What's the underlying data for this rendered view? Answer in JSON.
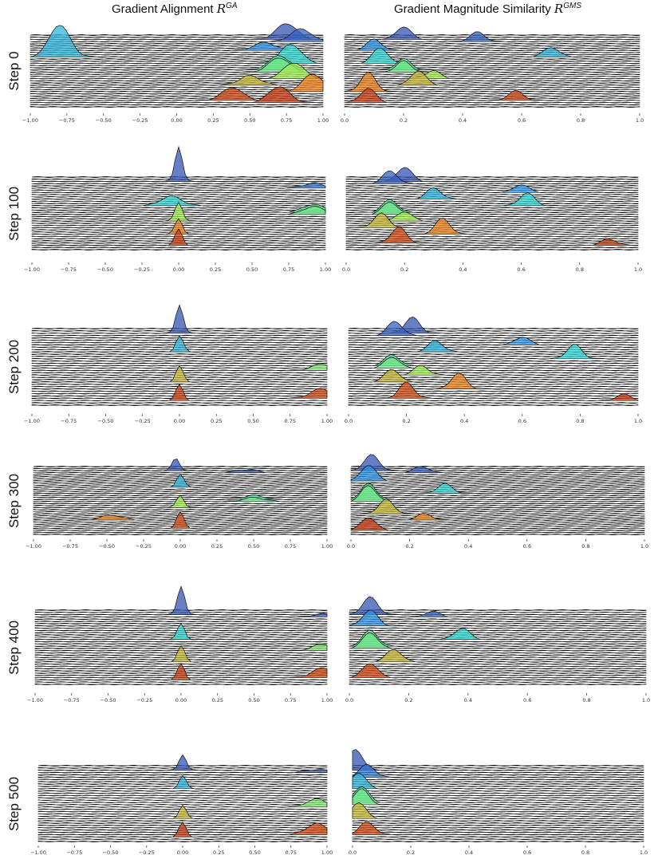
{
  "titles": {
    "ga_text": "Gradient Alignment ",
    "ga_sym": "R",
    "ga_sup": "GA",
    "gms_text": "Gradient Magnitude Similarity ",
    "gms_sym": "R",
    "gms_sup": "GMS"
  },
  "colors": {
    "top": "#3a3a9a",
    "mid_blue": "#2f8fe6",
    "cyan": "#30d9d0",
    "green": "#9ef052",
    "orange": "#f07a1a",
    "bottom": "#b3200e",
    "baseline": "#111111"
  },
  "chart_data": [
    {
      "type": "ridgeline",
      "panel": "GA",
      "row_label": "Step 0",
      "xlim": [
        -1.0,
        1.0
      ],
      "xticks": [
        "−1.00",
        "−0.75",
        "−0.50",
        "−0.25",
        "0.00",
        "0.25",
        "0.50",
        "0.75",
        "1.00"
      ],
      "peaks": [
        {
          "layer": 0.05,
          "center": 0.75,
          "height": 1.0
        },
        {
          "layer": 0.1,
          "center": 0.85,
          "height": 0.8
        },
        {
          "layer": 0.2,
          "center": 0.6,
          "height": 0.5
        },
        {
          "layer": 0.3,
          "center": -0.8,
          "height": 2.0
        },
        {
          "layer": 0.4,
          "center": 0.78,
          "height": 1.2
        },
        {
          "layer": 0.5,
          "center": 0.7,
          "height": 0.9
        },
        {
          "layer": 0.6,
          "center": 0.8,
          "height": 1.0
        },
        {
          "layer": 0.7,
          "center": 0.5,
          "height": 0.6
        },
        {
          "layer": 0.8,
          "center": 0.93,
          "height": 1.1
        },
        {
          "layer": 0.9,
          "center": 0.38,
          "height": 0.8
        },
        {
          "layer": 0.95,
          "center": 0.7,
          "height": 1.0
        }
      ]
    },
    {
      "type": "ridgeline",
      "panel": "GMS",
      "row_label": "Step 0",
      "xlim": [
        0.0,
        1.0
      ],
      "xticks": [
        "0.0",
        "0.2",
        "0.4",
        "0.6",
        "0.8",
        "1.0"
      ],
      "peaks": [
        {
          "layer": 0.05,
          "center": 0.2,
          "height": 0.8
        },
        {
          "layer": 0.1,
          "center": 0.45,
          "height": 0.6
        },
        {
          "layer": 0.2,
          "center": 0.1,
          "height": 0.7
        },
        {
          "layer": 0.3,
          "center": 0.7,
          "height": 0.6
        },
        {
          "layer": 0.4,
          "center": 0.12,
          "height": 1.0
        },
        {
          "layer": 0.5,
          "center": 0.2,
          "height": 0.7
        },
        {
          "layer": 0.6,
          "center": 0.3,
          "height": 0.5
        },
        {
          "layer": 0.7,
          "center": 0.25,
          "height": 0.9
        },
        {
          "layer": 0.8,
          "center": 0.08,
          "height": 1.2
        },
        {
          "layer": 0.9,
          "center": 0.58,
          "height": 0.6
        },
        {
          "layer": 0.95,
          "center": 0.08,
          "height": 0.9
        }
      ]
    },
    {
      "type": "ridgeline",
      "panel": "GA",
      "row_label": "Step 100",
      "xlim": [
        -1.0,
        1.0
      ],
      "xticks": [
        "−1.00",
        "−0.75",
        "−0.50",
        "−0.25",
        "0.00",
        "0.25",
        "0.50",
        "0.75",
        "1.00"
      ],
      "peaks": [
        {
          "layer": 0.05,
          "center": 0.0,
          "height": 2.2
        },
        {
          "layer": 0.15,
          "center": 0.92,
          "height": 0.3
        },
        {
          "layer": 0.4,
          "center": -0.05,
          "height": 0.6
        },
        {
          "layer": 0.5,
          "center": 0.92,
          "height": 0.5
        },
        {
          "layer": 0.6,
          "center": 0.0,
          "height": 1.2
        },
        {
          "layer": 0.8,
          "center": 0.0,
          "height": 1.0
        },
        {
          "layer": 0.95,
          "center": 0.0,
          "height": 1.0
        }
      ]
    },
    {
      "type": "ridgeline",
      "panel": "GMS",
      "row_label": "Step 100",
      "xlim": [
        0.0,
        1.0
      ],
      "xticks": [
        "0.0",
        "0.2",
        "0.4",
        "0.6",
        "0.8",
        "1.0"
      ],
      "peaks": [
        {
          "layer": 0.05,
          "center": 0.2,
          "height": 0.9
        },
        {
          "layer": 0.1,
          "center": 0.15,
          "height": 0.8
        },
        {
          "layer": 0.2,
          "center": 0.6,
          "height": 0.5
        },
        {
          "layer": 0.3,
          "center": 0.3,
          "height": 0.7
        },
        {
          "layer": 0.4,
          "center": 0.62,
          "height": 0.8
        },
        {
          "layer": 0.5,
          "center": 0.15,
          "height": 0.8
        },
        {
          "layer": 0.6,
          "center": 0.2,
          "height": 0.6
        },
        {
          "layer": 0.7,
          "center": 0.12,
          "height": 0.9
        },
        {
          "layer": 0.8,
          "center": 0.33,
          "height": 1.0
        },
        {
          "layer": 0.9,
          "center": 0.18,
          "height": 1.0
        },
        {
          "layer": 0.95,
          "center": 0.9,
          "height": 0.4
        }
      ]
    },
    {
      "type": "ridgeline",
      "panel": "GA",
      "row_label": "Step 200",
      "xlim": [
        -1.0,
        1.0
      ],
      "xticks": [
        "−1.00",
        "−0.75",
        "−0.50",
        "−0.25",
        "0.00",
        "0.25",
        "0.50",
        "0.75",
        "1.00"
      ],
      "peaks": [
        {
          "layer": 0.05,
          "center": 0.0,
          "height": 1.8
        },
        {
          "layer": 0.3,
          "center": 0.0,
          "height": 1.0
        },
        {
          "layer": 0.55,
          "center": 0.97,
          "height": 0.4
        },
        {
          "layer": 0.7,
          "center": 0.0,
          "height": 1.0
        },
        {
          "layer": 0.9,
          "center": 0.96,
          "height": 0.6
        },
        {
          "layer": 0.95,
          "center": 0.0,
          "height": 1.0
        }
      ]
    },
    {
      "type": "ridgeline",
      "panel": "GMS",
      "row_label": "Step 200",
      "xlim": [
        0.0,
        1.0
      ],
      "xticks": [
        "0.0",
        "0.2",
        "0.4",
        "0.6",
        "0.8",
        "1.0"
      ],
      "peaks": [
        {
          "layer": 0.05,
          "center": 0.22,
          "height": 1.0
        },
        {
          "layer": 0.1,
          "center": 0.16,
          "height": 0.9
        },
        {
          "layer": 0.2,
          "center": 0.6,
          "height": 0.5
        },
        {
          "layer": 0.3,
          "center": 0.3,
          "height": 0.7
        },
        {
          "layer": 0.4,
          "center": 0.78,
          "height": 0.9
        },
        {
          "layer": 0.5,
          "center": 0.15,
          "height": 0.7
        },
        {
          "layer": 0.6,
          "center": 0.25,
          "height": 0.6
        },
        {
          "layer": 0.7,
          "center": 0.15,
          "height": 0.8
        },
        {
          "layer": 0.8,
          "center": 0.38,
          "height": 1.0
        },
        {
          "layer": 0.9,
          "center": 0.2,
          "height": 1.0
        },
        {
          "layer": 0.95,
          "center": 0.95,
          "height": 0.4
        }
      ]
    },
    {
      "type": "ridgeline",
      "panel": "GA",
      "row_label": "Step 300",
      "xlim": [
        -1.0,
        1.0
      ],
      "xticks": [
        "−1.00",
        "−0.75",
        "−0.50",
        "−0.25",
        "0.00",
        "0.25",
        "0.50",
        "0.75",
        "1.00"
      ],
      "peaks": [
        {
          "layer": 0.05,
          "center": -0.03,
          "height": 0.8
        },
        {
          "layer": 0.1,
          "center": 0.45,
          "height": 0.2
        },
        {
          "layer": 0.3,
          "center": 0.0,
          "height": 0.8
        },
        {
          "layer": 0.5,
          "center": 0.5,
          "height": 0.25
        },
        {
          "layer": 0.6,
          "center": 0.0,
          "height": 0.8
        },
        {
          "layer": 0.8,
          "center": -0.47,
          "height": 0.3
        },
        {
          "layer": 0.9,
          "center": 0.0,
          "height": 1.0
        }
      ]
    },
    {
      "type": "ridgeline",
      "panel": "GMS",
      "row_label": "Step 300",
      "xlim": [
        0.0,
        1.0
      ],
      "xticks": [
        "0.0",
        "0.2",
        "0.4",
        "0.6",
        "0.8",
        "1.0"
      ],
      "peaks": [
        {
          "layer": 0.05,
          "center": 0.07,
          "height": 1.0
        },
        {
          "layer": 0.1,
          "center": 0.24,
          "height": 0.4
        },
        {
          "layer": 0.2,
          "center": 0.06,
          "height": 1.0
        },
        {
          "layer": 0.4,
          "center": 0.32,
          "height": 0.6
        },
        {
          "layer": 0.5,
          "center": 0.06,
          "height": 1.0
        },
        {
          "layer": 0.7,
          "center": 0.12,
          "height": 0.9
        },
        {
          "layer": 0.8,
          "center": 0.25,
          "height": 0.4
        },
        {
          "layer": 0.95,
          "center": 0.06,
          "height": 0.8
        }
      ]
    },
    {
      "type": "ridgeline",
      "panel": "GA",
      "row_label": "Step 400",
      "xlim": [
        -1.0,
        1.0
      ],
      "xticks": [
        "−1.00",
        "−0.75",
        "−0.50",
        "−0.25",
        "0.00",
        "0.25",
        "0.50",
        "0.75",
        "1.00"
      ],
      "peaks": [
        {
          "layer": 0.05,
          "center": 0.0,
          "height": 1.8
        },
        {
          "layer": 0.1,
          "center": 0.98,
          "height": 0.2
        },
        {
          "layer": 0.4,
          "center": 0.0,
          "height": 1.0
        },
        {
          "layer": 0.55,
          "center": 0.97,
          "height": 0.4
        },
        {
          "layer": 0.7,
          "center": 0.0,
          "height": 1.0
        },
        {
          "layer": 0.9,
          "center": 0.97,
          "height": 0.6
        },
        {
          "layer": 0.95,
          "center": 0.0,
          "height": 1.0
        }
      ]
    },
    {
      "type": "ridgeline",
      "panel": "GMS",
      "row_label": "Step 400",
      "xlim": [
        0.0,
        1.0
      ],
      "xticks": [
        "0.0",
        "0.2",
        "0.4",
        "0.6",
        "0.8",
        "1.0"
      ],
      "peaks": [
        {
          "layer": 0.05,
          "center": 0.07,
          "height": 1.1
        },
        {
          "layer": 0.1,
          "center": 0.28,
          "height": 0.35
        },
        {
          "layer": 0.2,
          "center": 0.07,
          "height": 1.0
        },
        {
          "layer": 0.4,
          "center": 0.38,
          "height": 0.7
        },
        {
          "layer": 0.5,
          "center": 0.07,
          "height": 1.0
        },
        {
          "layer": 0.7,
          "center": 0.15,
          "height": 0.8
        },
        {
          "layer": 0.9,
          "center": 0.07,
          "height": 0.9
        }
      ]
    },
    {
      "type": "ridgeline",
      "panel": "GA",
      "row_label": "Step 500",
      "xlim": [
        -1.0,
        1.0
      ],
      "xticks": [
        "−1.00",
        "−0.75",
        "−0.50",
        "−0.25",
        "0.00",
        "0.25",
        "0.50",
        "0.75",
        "1.00"
      ],
      "peaks": [
        {
          "layer": 0.05,
          "center": 0.0,
          "height": 1.0
        },
        {
          "layer": 0.1,
          "center": 0.93,
          "height": 0.2
        },
        {
          "layer": 0.3,
          "center": 0.0,
          "height": 0.8
        },
        {
          "layer": 0.55,
          "center": 0.93,
          "height": 0.5
        },
        {
          "layer": 0.7,
          "center": 0.0,
          "height": 0.8
        },
        {
          "layer": 0.9,
          "center": 0.93,
          "height": 0.7
        },
        {
          "layer": 0.95,
          "center": 0.0,
          "height": 0.9
        }
      ]
    },
    {
      "type": "ridgeline",
      "panel": "GMS",
      "row_label": "Step 500",
      "xlim": [
        0.0,
        1.0
      ],
      "xticks": [
        "0.0",
        "0.2",
        "0.4",
        "0.6",
        "0.8",
        "1.0"
      ],
      "peaks": [
        {
          "layer": 0.05,
          "center": 0.01,
          "height": 1.3
        },
        {
          "layer": 0.15,
          "center": 0.05,
          "height": 0.8
        },
        {
          "layer": 0.3,
          "center": 0.02,
          "height": 1.0
        },
        {
          "layer": 0.5,
          "center": 0.03,
          "height": 1.0
        },
        {
          "layer": 0.7,
          "center": 0.02,
          "height": 1.0
        },
        {
          "layer": 0.9,
          "center": 0.05,
          "height": 0.8
        }
      ]
    }
  ]
}
